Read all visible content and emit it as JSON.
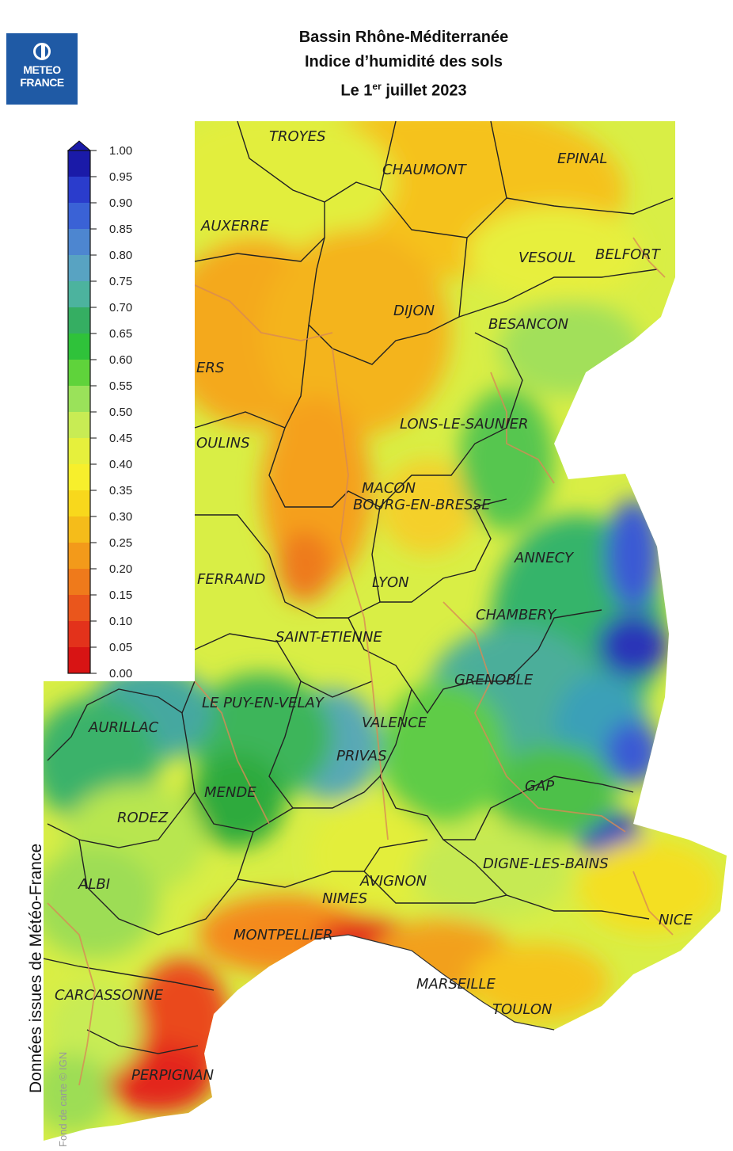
{
  "logo": {
    "line1": "METEO",
    "line2": "FRANCE"
  },
  "title": {
    "line1": "Bassin Rhône-Méditerranée",
    "line2": "Indice d’humidité des sols",
    "line3_prefix": "Le 1",
    "line3_sup": "er",
    "line3_suffix": " juillet 2023"
  },
  "legend": {
    "min": 0.0,
    "max": 1.0,
    "ticks": [
      "1.00",
      "0.95",
      "0.90",
      "0.85",
      "0.80",
      "0.75",
      "0.70",
      "0.65",
      "0.60",
      "0.55",
      "0.50",
      "0.45",
      "0.40",
      "0.35",
      "0.30",
      "0.25",
      "0.20",
      "0.15",
      "0.10",
      "0.05",
      "0.00"
    ],
    "colors": [
      "#1a1aa8",
      "#2a3ccc",
      "#3a62d6",
      "#4d86d0",
      "#58a3c2",
      "#4cb39e",
      "#35ae62",
      "#2fc23a",
      "#5fd33b",
      "#9ae25a",
      "#c8ec54",
      "#e6f03c",
      "#f7ef2c",
      "#f8d81c",
      "#f5bc1a",
      "#f39a1a",
      "#ef7a1b",
      "#ea561c",
      "#e3321b",
      "#d81414"
    ]
  },
  "cities": [
    {
      "name": "TROYES",
      "value": 0.45
    },
    {
      "name": "CHAUMONT",
      "value": 0.35
    },
    {
      "name": "EPINAL",
      "value": 0.33
    },
    {
      "name": "AUXERRE",
      "value": 0.42
    },
    {
      "name": "VESOUL",
      "value": 0.4
    },
    {
      "name": "BELFORT",
      "value": 0.42
    },
    {
      "name": "DIJON",
      "value": 0.3
    },
    {
      "name": "BESANCON",
      "value": 0.52
    },
    {
      "name": "ERS",
      "value": 0.3
    },
    {
      "name": "LONS-LE-SAUNIER",
      "value": 0.5
    },
    {
      "name": "OULINS",
      "value": 0.4
    },
    {
      "name": "MACON",
      "value": 0.38
    },
    {
      "name": "BOURG-EN-BRESSE",
      "value": 0.4
    },
    {
      "name": "ANNECY",
      "value": 0.55
    },
    {
      "name": "FERRAND",
      "value": 0.45
    },
    {
      "name": "LYON",
      "value": 0.45
    },
    {
      "name": "CHAMBERY",
      "value": 0.6
    },
    {
      "name": "SAINT-ETIENNE",
      "value": 0.55
    },
    {
      "name": "GRENOBLE",
      "value": 0.75
    },
    {
      "name": "LE PUY-EN-VELAY",
      "value": 0.6
    },
    {
      "name": "AURILLAC",
      "value": 0.7
    },
    {
      "name": "VALENCE",
      "value": 0.55
    },
    {
      "name": "PRIVAS",
      "value": 0.6
    },
    {
      "name": "GAP",
      "value": 0.7
    },
    {
      "name": "MENDE",
      "value": 0.65
    },
    {
      "name": "RODEZ",
      "value": 0.6
    },
    {
      "name": "DIGNE-LES-BAINS",
      "value": 0.55
    },
    {
      "name": "ALBI",
      "value": 0.5
    },
    {
      "name": "AVIGNON",
      "value": 0.45
    },
    {
      "name": "NIMES",
      "value": 0.45
    },
    {
      "name": "NICE",
      "value": 0.4
    },
    {
      "name": "MONTPELLIER",
      "value": 0.25
    },
    {
      "name": "MARSEILLE",
      "value": 0.25
    },
    {
      "name": "CARCASSONNE",
      "value": 0.4
    },
    {
      "name": "TOULON",
      "value": 0.3
    },
    {
      "name": "PERPIGNAN",
      "value": 0.15
    }
  ],
  "side_note": "Données issues de Météo-France",
  "credit": "Fond de carte © IGN"
}
